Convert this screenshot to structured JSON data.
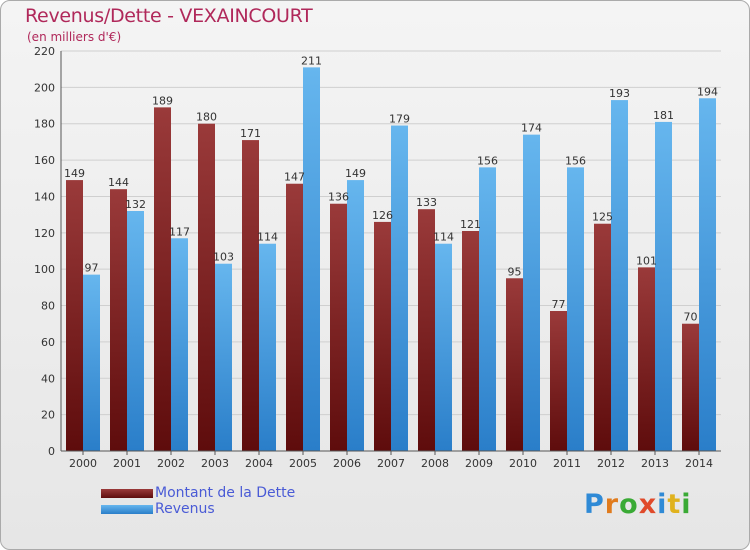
{
  "header": {
    "title": "Revenus/Dette - VEXAINCOURT",
    "subtitle": "(en milliers d'€)"
  },
  "legend": {
    "items": [
      {
        "label": "Montant de la Dette",
        "color": "#7a1a1a"
      },
      {
        "label": "Revenus",
        "color": "#4aa3e6"
      }
    ]
  },
  "logo": {
    "letters": [
      "P",
      "r",
      "o",
      "x",
      "i",
      "t",
      "i"
    ],
    "colors": [
      "#2f8ad6",
      "#e07b1d",
      "#3aaa35",
      "#e04a2a",
      "#2f8ad6",
      "#e0b21d",
      "#3aaa35"
    ]
  },
  "colors": {
    "dette_dark": "#5e0c0c",
    "dette_light": "#9a3a3a",
    "revenus_dark": "#2a7ec9",
    "revenus_light": "#66b6ee",
    "grid": "#cfcfcf"
  },
  "chart_data": {
    "type": "bar",
    "title": "Revenus/Dette - VEXAINCOURT",
    "subtitle": "(en milliers d'€)",
    "categories": [
      "2000",
      "2001",
      "2002",
      "2003",
      "2004",
      "2005",
      "2006",
      "2007",
      "2008",
      "2009",
      "2010",
      "2011",
      "2012",
      "2013",
      "2014"
    ],
    "series": [
      {
        "name": "Montant de la Dette",
        "values": [
          149,
          144,
          189,
          180,
          171,
          147,
          136,
          126,
          133,
          121,
          95,
          77,
          125,
          101,
          70
        ]
      },
      {
        "name": "Revenus",
        "values": [
          97,
          132,
          117,
          103,
          114,
          211,
          149,
          179,
          114,
          156,
          174,
          156,
          193,
          181,
          194
        ]
      }
    ],
    "ylim": [
      0,
      220
    ],
    "yticks": [
      0,
      20,
      40,
      60,
      80,
      100,
      120,
      140,
      160,
      180,
      200,
      220
    ],
    "grid": true,
    "legend_position": "bottom-left"
  }
}
